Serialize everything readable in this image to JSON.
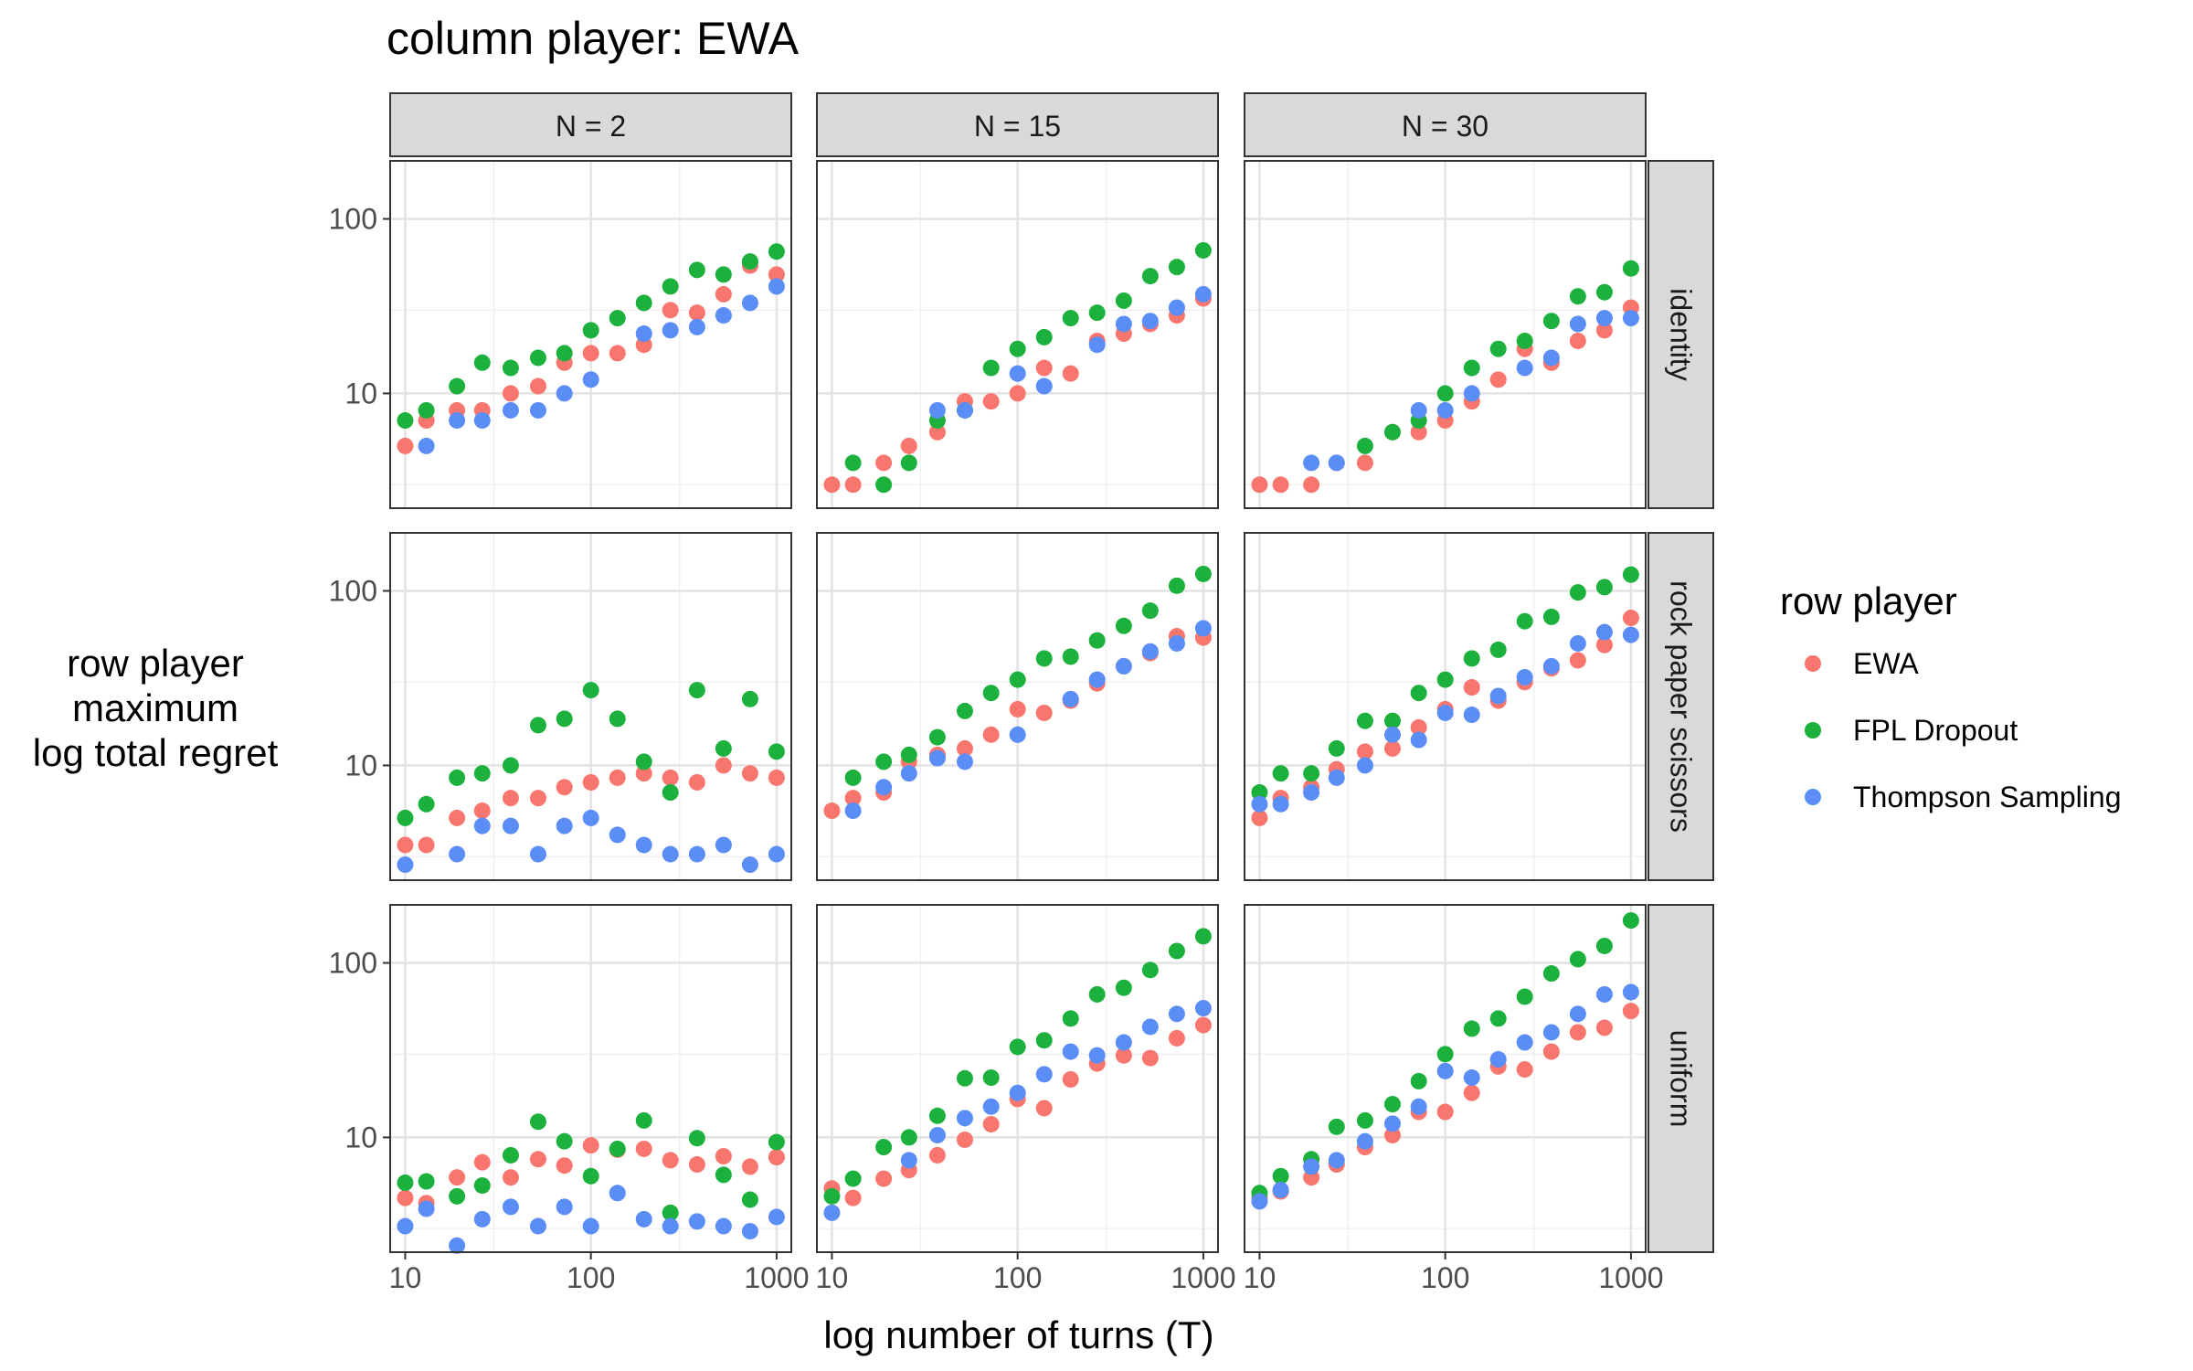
{
  "chart_data": {
    "type": "scatter",
    "title": "column player: EWA",
    "xlabel": "log number of turns (T)",
    "ylabel": [
      "row player",
      "maximum",
      "log total regret"
    ],
    "x_scale": "log",
    "y_scale": "log",
    "xlim": [
      8.3,
      1200
    ],
    "ylim": [
      2.2,
      215
    ],
    "x_ticks": [
      10,
      100,
      1000
    ],
    "x_tick_labels": [
      "10",
      "100",
      "1000"
    ],
    "y_ticks": [
      10,
      100
    ],
    "y_tick_labels": [
      "10",
      "100"
    ],
    "grid": true,
    "legend_position": "right",
    "legend_title": "row player",
    "columns": [
      "N = 2",
      "N = 15",
      "N = 30"
    ],
    "rows": [
      "identity",
      "rock paper scissors",
      "uniform"
    ],
    "series_colors": {
      "EWA": "#F8766D",
      "FPL Dropout": "#1BB13C",
      "Thompson Sampling": "#5B8DF6"
    },
    "series_order": [
      "EWA",
      "FPL Dropout",
      "Thompson Sampling"
    ],
    "x": [
      10,
      13,
      19,
      26,
      37,
      52,
      72,
      100,
      139,
      193,
      268,
      373,
      518,
      720,
      1000
    ],
    "panels": [
      {
        "row": "identity",
        "col": "N = 2",
        "series": {
          "EWA": [
            5,
            7,
            8,
            8,
            10,
            11,
            15,
            17,
            17,
            19,
            30,
            29,
            37,
            54,
            48
          ],
          "FPL Dropout": [
            7,
            8,
            11,
            15,
            14,
            16,
            17,
            23,
            27,
            33,
            41,
            51,
            48,
            57,
            65
          ],
          "Thompson Sampling": [
            null,
            5,
            7,
            7,
            8,
            8,
            10,
            12,
            null,
            22,
            23,
            24,
            28,
            33,
            41
          ]
        }
      },
      {
        "row": "identity",
        "col": "N = 15",
        "series": {
          "EWA": [
            3,
            3,
            4,
            5,
            6,
            9,
            9,
            10,
            14,
            13,
            20,
            22,
            25,
            28,
            35
          ],
          "FPL Dropout": [
            null,
            4,
            3,
            4,
            7,
            8,
            14,
            18,
            21,
            27,
            29,
            34,
            47,
            53,
            66
          ],
          "Thompson Sampling": [
            null,
            null,
            null,
            null,
            8,
            8,
            null,
            13,
            11,
            null,
            19,
            25,
            26,
            31,
            37
          ]
        }
      },
      {
        "row": "identity",
        "col": "N = 30",
        "series": {
          "EWA": [
            3,
            3,
            3,
            4,
            4,
            6,
            6,
            7,
            9,
            12,
            18,
            15,
            20,
            23,
            31
          ],
          "FPL Dropout": [
            null,
            null,
            null,
            null,
            5,
            6,
            7,
            10,
            14,
            18,
            20,
            26,
            36,
            38,
            52
          ],
          "Thompson Sampling": [
            null,
            null,
            4,
            4,
            null,
            null,
            8,
            8,
            10,
            null,
            14,
            16,
            25,
            27,
            27
          ]
        }
      },
      {
        "row": "rock paper scissors",
        "col": "N = 2",
        "series": {
          "EWA": [
            3.5,
            3.5,
            5,
            5.5,
            6.5,
            6.5,
            7.5,
            8,
            8.5,
            9,
            8.5,
            8,
            10,
            9,
            8.5
          ],
          "FPL Dropout": [
            5,
            6,
            8.5,
            9,
            10,
            17,
            18.5,
            27,
            18.5,
            10.5,
            7,
            27,
            12.5,
            24,
            12
          ],
          "Thompson Sampling": [
            2.7,
            null,
            3.1,
            4.5,
            4.5,
            3.1,
            4.5,
            5,
            4,
            3.5,
            3.1,
            3.1,
            3.5,
            2.7,
            3.1
          ]
        }
      },
      {
        "row": "rock paper scissors",
        "col": "N = 15",
        "series": {
          "EWA": [
            5.5,
            6.5,
            7,
            10.5,
            11.5,
            12.5,
            15,
            21,
            20,
            23.5,
            29.5,
            37,
            44,
            55,
            54
          ],
          "FPL Dropout": [
            null,
            8.5,
            10.5,
            11.5,
            14.5,
            20.5,
            26,
            31,
            41,
            42,
            52,
            63,
            77,
            107,
            125
          ],
          "Thompson Sampling": [
            null,
            5.5,
            7.5,
            9,
            11,
            10.5,
            null,
            15,
            null,
            24,
            31,
            37,
            45,
            50,
            61
          ]
        }
      },
      {
        "row": "rock paper scissors",
        "col": "N = 30",
        "series": {
          "EWA": [
            5,
            6.5,
            7.5,
            9.5,
            12,
            12.5,
            16.5,
            21,
            28,
            23.5,
            30,
            36,
            40,
            49,
            70
          ],
          "FPL Dropout": [
            7,
            9,
            9,
            12.5,
            18,
            18,
            26,
            31,
            41,
            46,
            67,
            71,
            98,
            105,
            124
          ],
          "Thompson Sampling": [
            6,
            6,
            7,
            8.5,
            10,
            15,
            14,
            20,
            19.5,
            25,
            32,
            37,
            50,
            58,
            56
          ]
        }
      },
      {
        "row": "uniform",
        "col": "N = 2",
        "series": {
          "EWA": [
            4.5,
            4.2,
            5.9,
            7.2,
            5.9,
            7.5,
            6.9,
            9,
            8.5,
            8.6,
            7.4,
            7,
            7.8,
            6.8,
            7.7
          ],
          "FPL Dropout": [
            5.5,
            5.6,
            4.6,
            5.3,
            7.9,
            12.3,
            9.5,
            6,
            8.6,
            12.5,
            3.7,
            9.9,
            6.1,
            4.4,
            9.4
          ],
          "Thompson Sampling": [
            3.1,
            3.9,
            2.4,
            3.4,
            4,
            3.1,
            4,
            3.1,
            4.8,
            3.4,
            3.1,
            3.3,
            3.1,
            2.9,
            3.5
          ]
        }
      },
      {
        "row": "uniform",
        "col": "N = 15",
        "series": {
          "EWA": [
            5.1,
            4.5,
            5.8,
            6.5,
            7.9,
            9.7,
            11.9,
            16.6,
            14.7,
            21.5,
            26.5,
            29.5,
            28.5,
            37,
            44
          ],
          "FPL Dropout": [
            4.6,
            5.8,
            8.8,
            10,
            13.3,
            21.8,
            22,
            33,
            36,
            48,
            66,
            72,
            91,
            117,
            142
          ],
          "Thompson Sampling": [
            3.7,
            null,
            null,
            7.4,
            10.3,
            12.9,
            15,
            18,
            23,
            31,
            29.5,
            35,
            43,
            51,
            55
          ]
        }
      },
      {
        "row": "uniform",
        "col": "N = 30",
        "series": {
          "EWA": [
            4.5,
            4.9,
            5.9,
            7,
            8.8,
            10.3,
            14,
            14,
            18,
            25.5,
            24.5,
            31,
            40,
            42.5,
            53
          ],
          "FPL Dropout": [
            4.8,
            6,
            7.5,
            11.5,
            12.5,
            15.5,
            21,
            30,
            42,
            48,
            64,
            87,
            105,
            125,
            175
          ],
          "Thompson Sampling": [
            4.3,
            5,
            6.8,
            7.4,
            9.5,
            12,
            15,
            24,
            22,
            28,
            35,
            40,
            51,
            66,
            68
          ]
        }
      }
    ]
  }
}
